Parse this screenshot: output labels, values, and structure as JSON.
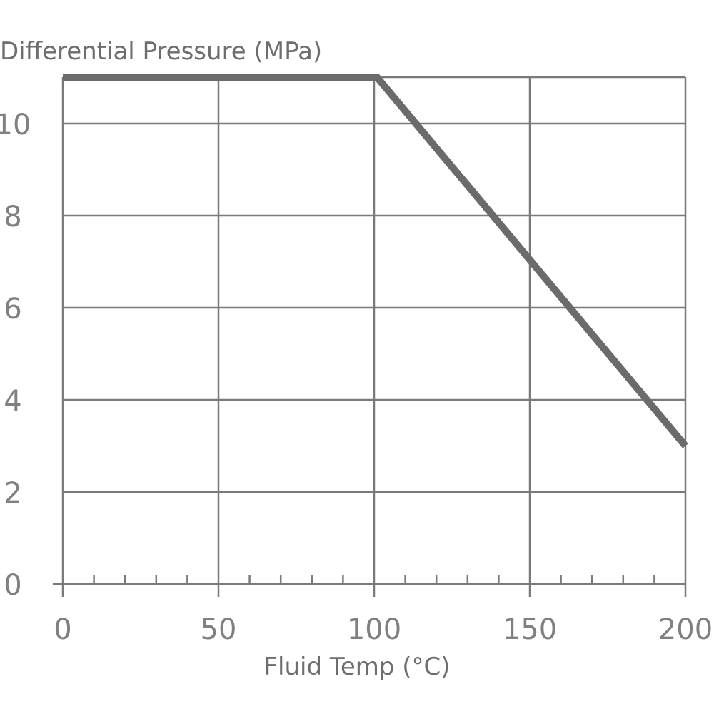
{
  "chart_data": {
    "type": "line",
    "title": "",
    "ylabel": "Differential Pressure (MPa)",
    "xlabel": "Fluid Temp (°C)",
    "xlim": [
      0,
      200
    ],
    "ylim": [
      0,
      11
    ],
    "x_ticks": [
      0,
      50,
      100,
      150,
      200
    ],
    "y_ticks": [
      0,
      2,
      4,
      6,
      8,
      10
    ],
    "x_tick_labels": [
      "0",
      "50",
      "100",
      "150",
      "200"
    ],
    "y_tick_labels": [
      "0",
      "2",
      "4",
      "6",
      "8",
      "10"
    ],
    "grid": true,
    "series": [
      {
        "x": [
          0,
          101,
          200
        ],
        "y": [
          11,
          11,
          3
        ]
      }
    ],
    "colors": {
      "line": "#6b6b6b",
      "grid": "#7a7a7a",
      "text": "#808080"
    }
  }
}
